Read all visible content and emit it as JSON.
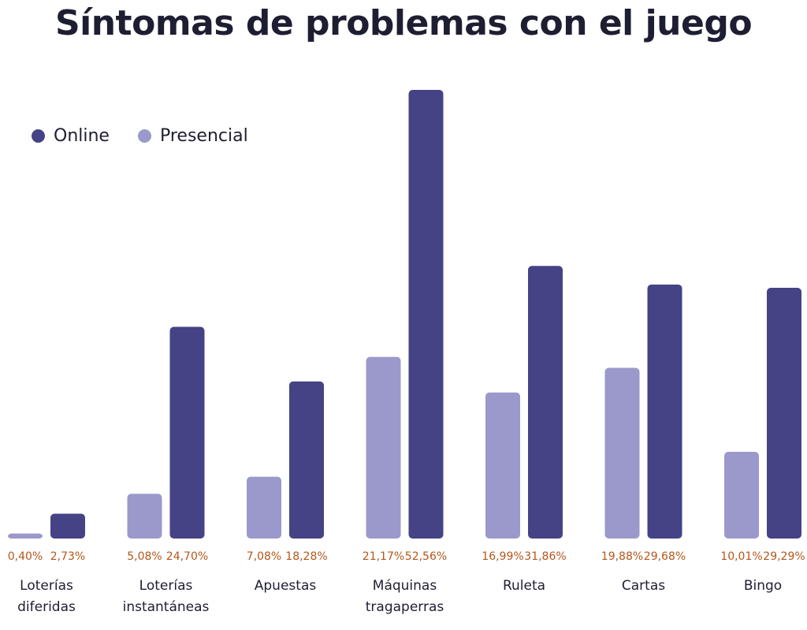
{
  "title": "Síntomas de problemas con el juego",
  "legend": {
    "online": "Online",
    "presencial": "Presencial"
  },
  "colors": {
    "online": "#454385",
    "presencial": "#9b99cb",
    "value_label": "#b4561b",
    "text": "#1e1e33"
  },
  "chart_data": {
    "type": "bar",
    "title": "Síntomas de problemas con el juego",
    "xlabel": "",
    "ylabel": "",
    "ylim": [
      0,
      52.56
    ],
    "grid": false,
    "legend_position": "top-left",
    "categories": [
      [
        "Loterías",
        "diferidas"
      ],
      [
        "Loterías",
        "instantáneas"
      ],
      [
        "Apuestas"
      ],
      [
        "Máquinas",
        "tragaperras"
      ],
      [
        "Ruleta"
      ],
      [
        "Cartas"
      ],
      [
        "Bingo"
      ]
    ],
    "series": [
      {
        "name": "Presencial",
        "values": [
          0.4,
          5.08,
          7.08,
          21.17,
          16.99,
          19.88,
          10.01
        ],
        "labels": [
          "0,40%",
          "5,08%",
          "7,08%",
          "21,17%",
          "16,99%",
          "19,88%",
          "10,01%"
        ]
      },
      {
        "name": "Online",
        "values": [
          2.73,
          24.7,
          18.28,
          52.56,
          31.86,
          29.68,
          29.29
        ],
        "labels": [
          "2,73%",
          "24,70%",
          "18,28%",
          "52,56%",
          "31,86%",
          "29,68%",
          "29,29%"
        ]
      }
    ]
  }
}
